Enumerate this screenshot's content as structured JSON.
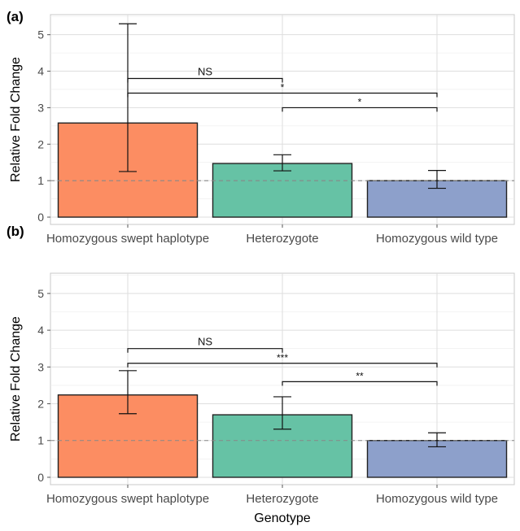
{
  "figure": {
    "xlabel": "Genotype",
    "ylabel": "Relative Fold Change"
  },
  "chart_data": [
    {
      "panel_label": "(a)",
      "type": "bar",
      "categories": [
        "Homozygous swept haplotype",
        "Heterozygote",
        "Homozygous wild type"
      ],
      "values": [
        2.58,
        1.47,
        1.0
      ],
      "error_low": [
        1.25,
        1.27,
        0.79
      ],
      "error_high": [
        5.3,
        1.71,
        1.28
      ],
      "ylim": [
        -0.2,
        5.55
      ],
      "yticks": [
        0,
        1,
        2,
        3,
        4,
        5
      ],
      "reference_line": 1,
      "grid": true,
      "colors": [
        "#fc8d62",
        "#66c2a5",
        "#8da0cb"
      ],
      "significance": [
        {
          "from": 0,
          "to": 1,
          "y": 3.8,
          "label": "NS"
        },
        {
          "from": 0,
          "to": 2,
          "y": 3.4,
          "label": "*"
        },
        {
          "from": 1,
          "to": 2,
          "y": 3.0,
          "label": "*"
        }
      ]
    },
    {
      "panel_label": "(b)",
      "type": "bar",
      "categories": [
        "Homozygous swept haplotype",
        "Heterozygote",
        "Homozygous wild type"
      ],
      "values": [
        2.24,
        1.7,
        1.0
      ],
      "error_low": [
        1.73,
        1.31,
        0.83
      ],
      "error_high": [
        2.9,
        2.19,
        1.21
      ],
      "ylim": [
        -0.2,
        5.55
      ],
      "yticks": [
        0,
        1,
        2,
        3,
        4,
        5
      ],
      "reference_line": 1,
      "grid": true,
      "colors": [
        "#fc8d62",
        "#66c2a5",
        "#8da0cb"
      ],
      "significance": [
        {
          "from": 0,
          "to": 1,
          "y": 3.5,
          "label": "NS"
        },
        {
          "from": 0,
          "to": 2,
          "y": 3.1,
          "label": "***"
        },
        {
          "from": 1,
          "to": 2,
          "y": 2.6,
          "label": "**"
        }
      ]
    }
  ]
}
